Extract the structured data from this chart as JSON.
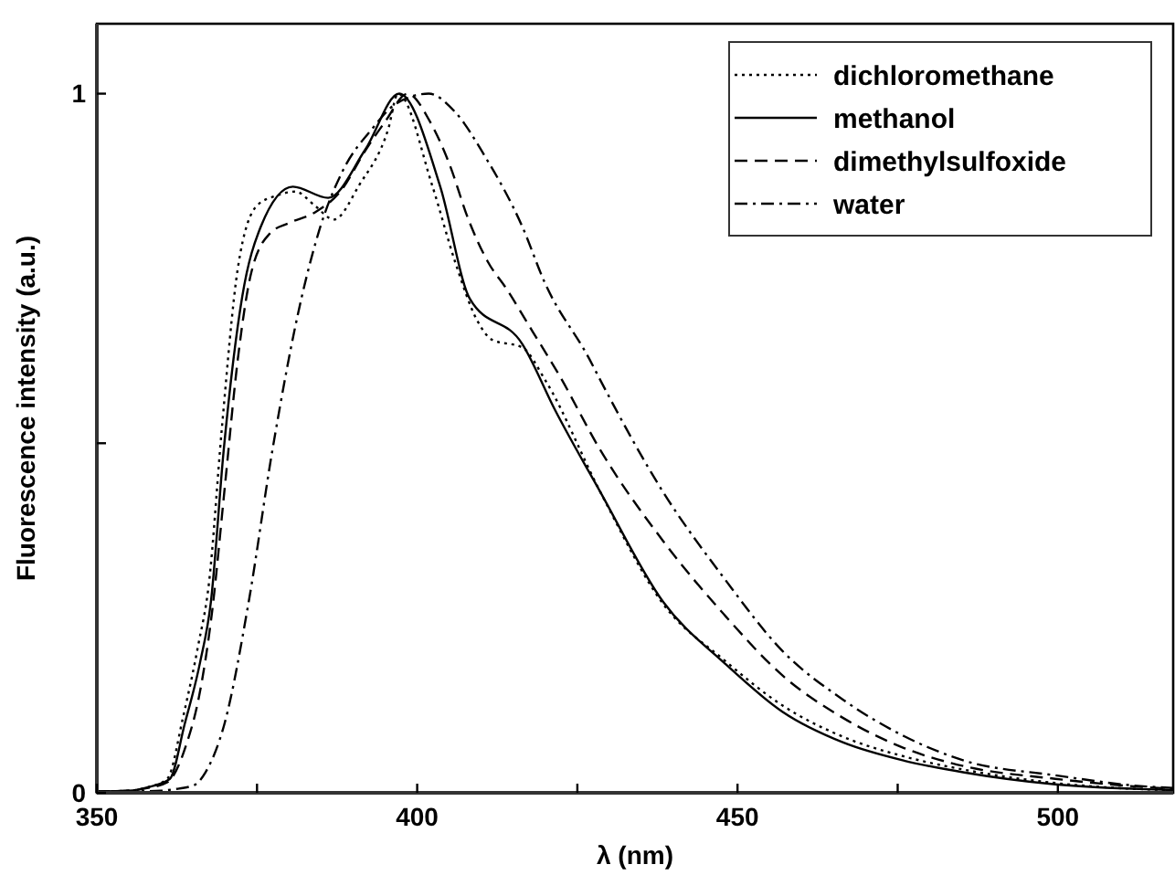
{
  "chart_data": {
    "type": "line",
    "xlabel": "λ (nm)",
    "ylabel": "Fluorescence intensity (a.u.)",
    "xlim": [
      350,
      518
    ],
    "ylim": [
      0,
      1.1
    ],
    "xticks": [
      350,
      {
        "value": 375,
        "label": null
      },
      400,
      {
        "value": 425,
        "label": null
      },
      450,
      {
        "value": 475,
        "label": null
      },
      500
    ],
    "yticks": [
      0,
      {
        "value": 0.5,
        "label": null
      },
      1
    ],
    "legend": "top right",
    "series": [
      {
        "name": "dichloromethane",
        "color": "#000000",
        "line_style": "dotted",
        "x": [
          350,
          355,
          358,
          361,
          363.5,
          365.8,
          367.5,
          369.5,
          372,
          375,
          378,
          381,
          384,
          387,
          391,
          395.5,
          397,
          402.4,
          405.9,
          409.4,
          411.7,
          416.4,
          420,
          428.6,
          438.4,
          447.9,
          457,
          466.5,
          476,
          485.4,
          499.6,
          513.8,
          518
        ],
        "values": [
          0.002,
          0.003,
          0.008,
          0.02,
          0.11,
          0.21,
          0.3,
          0.52,
          0.75,
          0.84,
          0.854,
          0.86,
          0.84,
          0.82,
          0.87,
          0.95,
          1.0,
          0.867,
          0.76,
          0.675,
          0.648,
          0.637,
          0.59,
          0.43,
          0.27,
          0.19,
          0.125,
          0.08,
          0.052,
          0.033,
          0.014,
          0.005,
          0.004
        ]
      },
      {
        "name": "methanol",
        "color": "#000000",
        "line_style": "solid",
        "x": [
          350,
          355,
          358,
          361.4,
          363.7,
          366.1,
          367.8,
          369.8,
          372.7,
          375.6,
          380.6,
          386.1,
          391.9,
          397.2,
          403.6,
          408.2,
          416.4,
          421.6,
          428.6,
          438.4,
          447.9,
          457,
          466.5,
          476,
          485.4,
          499.6,
          513.8,
          518
        ],
        "values": [
          0.002,
          0.003,
          0.008,
          0.02,
          0.098,
          0.186,
          0.273,
          0.49,
          0.71,
          0.81,
          0.867,
          0.851,
          0.92,
          1.0,
          0.867,
          0.707,
          0.642,
          0.546,
          0.43,
          0.273,
          0.186,
          0.116,
          0.072,
          0.046,
          0.029,
          0.012,
          0.005,
          0.004
        ]
      },
      {
        "name": "dimethylsulfoxide",
        "color": "#000000",
        "line_style": "dashed",
        "x": [
          350,
          355,
          358,
          361,
          364,
          366,
          368,
          370,
          372,
          374,
          377,
          380,
          384,
          388,
          392,
          395,
          398.5,
          402,
          405,
          408,
          411,
          414,
          418,
          422,
          428.6,
          438.4,
          447.9,
          457,
          466.5,
          476,
          485.4,
          499.6,
          513.8,
          518
        ],
        "values": [
          0.002,
          0.003,
          0.007,
          0.015,
          0.07,
          0.14,
          0.26,
          0.44,
          0.62,
          0.74,
          0.8,
          0.815,
          0.83,
          0.86,
          0.92,
          0.96,
          1.0,
          0.96,
          0.9,
          0.82,
          0.76,
          0.72,
          0.66,
          0.6,
          0.49,
          0.36,
          0.255,
          0.168,
          0.107,
          0.064,
          0.038,
          0.02,
          0.008,
          0.006
        ]
      },
      {
        "name": "water",
        "color": "#000000",
        "line_style": "dashdot",
        "x": [
          350,
          355,
          360,
          362,
          365.2,
          367,
          369.9,
          373.7,
          377.4,
          382,
          384.9,
          388.4,
          393,
          396.6,
          401.8,
          405.9,
          410.6,
          416.4,
          419.9,
          426.9,
          428.6,
          438.4,
          447.9,
          457,
          466.5,
          476,
          485.4,
          499.6,
          513.8,
          518
        ],
        "values": [
          0.001,
          0.002,
          0.003,
          0.005,
          0.011,
          0.03,
          0.098,
          0.273,
          0.49,
          0.71,
          0.81,
          0.89,
          0.95,
          0.985,
          1.0,
          0.974,
          0.91,
          0.81,
          0.73,
          0.62,
          0.59,
          0.43,
          0.307,
          0.203,
          0.133,
          0.081,
          0.046,
          0.025,
          0.009,
          0.007
        ]
      }
    ]
  }
}
